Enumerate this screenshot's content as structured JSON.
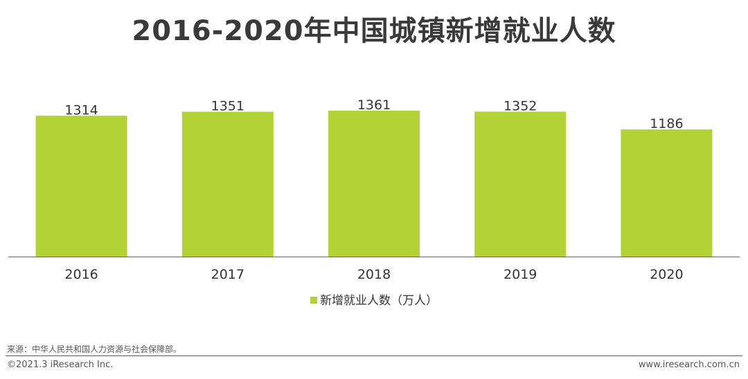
{
  "title": "2016-2020年中国城镇新增就业人数",
  "legend_label": "新增就业人数（万人）",
  "colors": {
    "bar": "#b2d235",
    "axis": "#666666"
  },
  "chart_data": {
    "type": "bar",
    "categories": [
      "2016",
      "2017",
      "2018",
      "2019",
      "2020"
    ],
    "series": [
      {
        "name": "新增就业人数（万人）",
        "values": [
          1314,
          1351,
          1361,
          1352,
          1186
        ]
      }
    ],
    "data_labels": [
      "1314",
      "1351",
      "1361",
      "1352",
      "1186"
    ],
    "title": "2016-2020年中国城镇新增就业人数",
    "xlabel": "",
    "ylabel": "",
    "ylim": [
      0,
      1361
    ],
    "grid": false,
    "legend": "bottom"
  },
  "footer": {
    "source": "来源：中华人民共和国人力资源与社会保障部。",
    "copyright": "©2021.3 iResearch Inc.",
    "website": "www.iresearch.com.cn"
  }
}
